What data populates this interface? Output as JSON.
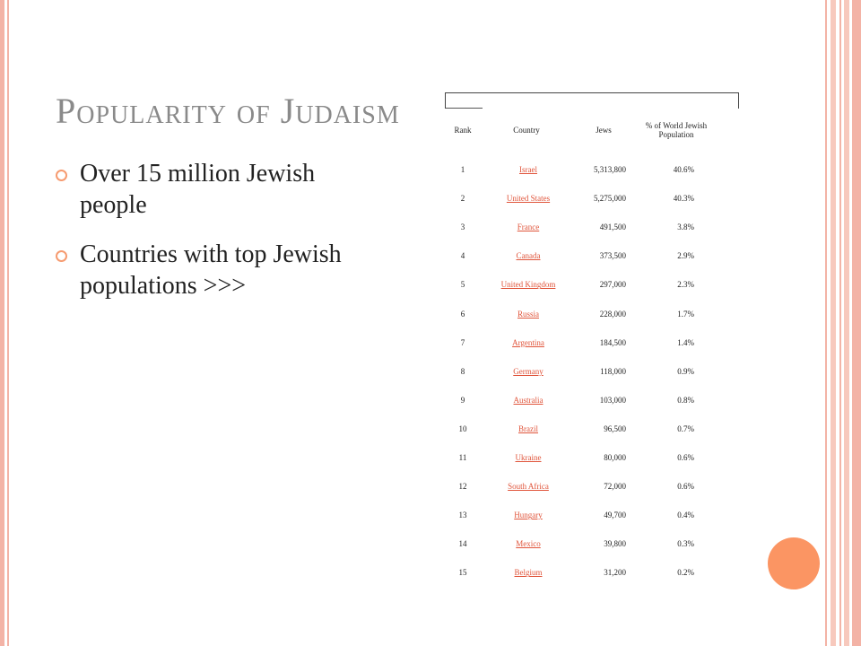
{
  "slide": {
    "title": "Popularity of Judaism",
    "bullets": [
      "Over 15 million Jewish people",
      "Countries with top Jewish populations >>>"
    ]
  },
  "table": {
    "headers": {
      "rank": "Rank",
      "country": "Country",
      "jews": "Jews",
      "pct": "% of World Jewish Population"
    },
    "rows": [
      {
        "rank": "1",
        "country": "Israel",
        "jews": "5,313,800",
        "pct": "40.6%"
      },
      {
        "rank": "2",
        "country": "United States",
        "jews": "5,275,000",
        "pct": "40.3%"
      },
      {
        "rank": "3",
        "country": "France",
        "jews": "491,500",
        "pct": "3.8%"
      },
      {
        "rank": "4",
        "country": "Canada",
        "jews": "373,500",
        "pct": "2.9%"
      },
      {
        "rank": "5",
        "country": "United Kingdom",
        "jews": "297,000",
        "pct": "2.3%"
      },
      {
        "rank": "6",
        "country": "Russia",
        "jews": "228,000",
        "pct": "1.7%"
      },
      {
        "rank": "7",
        "country": "Argentina",
        "jews": "184,500",
        "pct": "1.4%"
      },
      {
        "rank": "8",
        "country": "Germany",
        "jews": "118,000",
        "pct": "0.9%"
      },
      {
        "rank": "9",
        "country": "Australia",
        "jews": "103,000",
        "pct": "0.8%"
      },
      {
        "rank": "10",
        "country": "Brazil",
        "jews": "96,500",
        "pct": "0.7%"
      },
      {
        "rank": "11",
        "country": "Ukraine",
        "jews": "80,000",
        "pct": "0.6%"
      },
      {
        "rank": "12",
        "country": "South Africa",
        "jews": "72,000",
        "pct": "0.6%"
      },
      {
        "rank": "13",
        "country": "Hungary",
        "jews": "49,700",
        "pct": "0.4%"
      },
      {
        "rank": "14",
        "country": "Mexico",
        "jews": "39,800",
        "pct": "0.3%"
      },
      {
        "rank": "15",
        "country": "Belgium",
        "jews": "31,200",
        "pct": "0.2%"
      }
    ]
  },
  "colors": {
    "accent": "#fb9563",
    "frame": "#f3b3a6",
    "link": "#e0543a"
  }
}
